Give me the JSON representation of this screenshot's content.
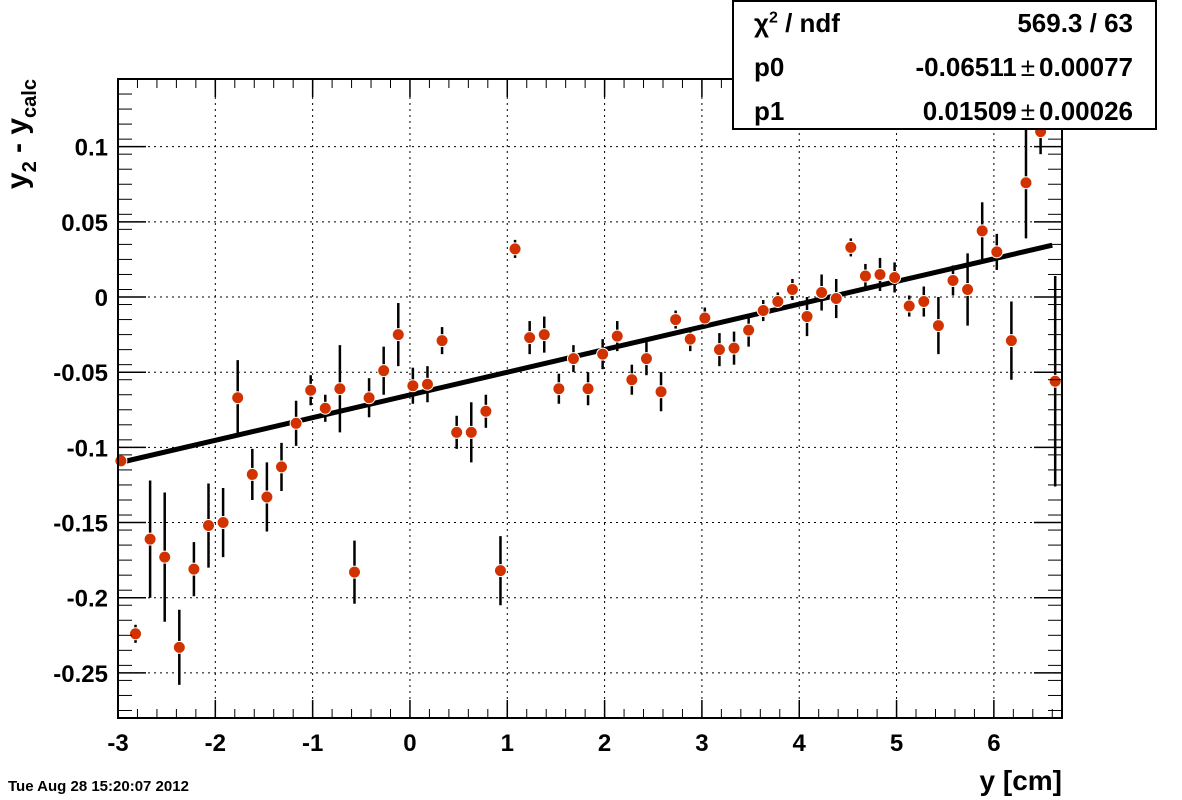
{
  "chart_data": {
    "type": "scatter",
    "xlabel": "y [cm]",
    "ylabel": {
      "base": "y",
      "sub1": "2",
      "mid": " - y",
      "sub2": "calc"
    },
    "xlim": [
      -3.0,
      6.7
    ],
    "ylim": [
      -0.28,
      0.145
    ],
    "grid": true,
    "x_ticks": [
      -3,
      -2,
      -1,
      0,
      1,
      2,
      3,
      4,
      5,
      6
    ],
    "x_tick_labels": [
      "-3",
      "-2",
      "-1",
      "0",
      "1",
      "2",
      "3",
      "4",
      "5",
      "6"
    ],
    "y_ticks": [
      -0.25,
      -0.2,
      -0.15,
      -0.1,
      -0.05,
      0,
      0.05,
      0.1
    ],
    "y_tick_labels": [
      "-0.25",
      "-0.2",
      "-0.15",
      "-0.1",
      "-0.05",
      "0",
      "0.05",
      "0.1"
    ],
    "marker_color": "#d23200",
    "fit_color": "#000000",
    "points": [
      {
        "x": -2.97,
        "y": -0.109,
        "err": 0.002
      },
      {
        "x": -2.82,
        "y": -0.224,
        "err": 0.006
      },
      {
        "x": -2.67,
        "y": -0.161,
        "err": 0.039
      },
      {
        "x": -2.52,
        "y": -0.173,
        "err": 0.043
      },
      {
        "x": -2.37,
        "y": -0.233,
        "err": 0.025
      },
      {
        "x": -2.22,
        "y": -0.181,
        "err": 0.018
      },
      {
        "x": -2.07,
        "y": -0.152,
        "err": 0.028
      },
      {
        "x": -1.92,
        "y": -0.15,
        "err": 0.023
      },
      {
        "x": -1.77,
        "y": -0.067,
        "err": 0.025
      },
      {
        "x": -1.62,
        "y": -0.118,
        "err": 0.017
      },
      {
        "x": -1.47,
        "y": -0.133,
        "err": 0.023
      },
      {
        "x": -1.32,
        "y": -0.113,
        "err": 0.016
      },
      {
        "x": -1.17,
        "y": -0.084,
        "err": 0.015
      },
      {
        "x": -1.02,
        "y": -0.062,
        "err": 0.01
      },
      {
        "x": -0.87,
        "y": -0.074,
        "err": 0.009
      },
      {
        "x": -0.72,
        "y": -0.061,
        "err": 0.029
      },
      {
        "x": -0.57,
        "y": -0.183,
        "err": 0.021
      },
      {
        "x": -0.42,
        "y": -0.067,
        "err": 0.013
      },
      {
        "x": -0.27,
        "y": -0.049,
        "err": 0.016
      },
      {
        "x": -0.12,
        "y": -0.025,
        "err": 0.021
      },
      {
        "x": 0.03,
        "y": -0.059,
        "err": 0.012
      },
      {
        "x": 0.18,
        "y": -0.058,
        "err": 0.012
      },
      {
        "x": 0.33,
        "y": -0.029,
        "err": 0.009
      },
      {
        "x": 0.48,
        "y": -0.09,
        "err": 0.011
      },
      {
        "x": 0.63,
        "y": -0.09,
        "err": 0.02
      },
      {
        "x": 0.78,
        "y": -0.076,
        "err": 0.011
      },
      {
        "x": 0.93,
        "y": -0.182,
        "err": 0.023
      },
      {
        "x": 1.08,
        "y": 0.032,
        "err": 0.006
      },
      {
        "x": 1.23,
        "y": -0.027,
        "err": 0.011
      },
      {
        "x": 1.38,
        "y": -0.025,
        "err": 0.012
      },
      {
        "x": 1.53,
        "y": -0.061,
        "err": 0.01
      },
      {
        "x": 1.68,
        "y": -0.041,
        "err": 0.009
      },
      {
        "x": 1.83,
        "y": -0.061,
        "err": 0.011
      },
      {
        "x": 1.98,
        "y": -0.038,
        "err": 0.01
      },
      {
        "x": 2.13,
        "y": -0.026,
        "err": 0.01
      },
      {
        "x": 2.28,
        "y": -0.055,
        "err": 0.01
      },
      {
        "x": 2.43,
        "y": -0.041,
        "err": 0.011
      },
      {
        "x": 2.58,
        "y": -0.063,
        "err": 0.013
      },
      {
        "x": 2.73,
        "y": -0.015,
        "err": 0.006
      },
      {
        "x": 2.88,
        "y": -0.028,
        "err": 0.008
      },
      {
        "x": 3.03,
        "y": -0.014,
        "err": 0.007
      },
      {
        "x": 3.18,
        "y": -0.035,
        "err": 0.011
      },
      {
        "x": 3.33,
        "y": -0.034,
        "err": 0.011
      },
      {
        "x": 3.48,
        "y": -0.022,
        "err": 0.011
      },
      {
        "x": 3.63,
        "y": -0.009,
        "err": 0.007
      },
      {
        "x": 3.78,
        "y": -0.003,
        "err": 0.006
      },
      {
        "x": 3.93,
        "y": 0.005,
        "err": 0.007
      },
      {
        "x": 4.08,
        "y": -0.013,
        "err": 0.013
      },
      {
        "x": 4.23,
        "y": 0.003,
        "err": 0.012
      },
      {
        "x": 4.38,
        "y": -0.001,
        "err": 0.013
      },
      {
        "x": 4.53,
        "y": 0.033,
        "err": 0.006
      },
      {
        "x": 4.68,
        "y": 0.014,
        "err": 0.008
      },
      {
        "x": 4.83,
        "y": 0.015,
        "err": 0.011
      },
      {
        "x": 4.98,
        "y": 0.013,
        "err": 0.01
      },
      {
        "x": 5.13,
        "y": -0.006,
        "err": 0.007
      },
      {
        "x": 5.28,
        "y": -0.003,
        "err": 0.01
      },
      {
        "x": 5.43,
        "y": -0.019,
        "err": 0.019
      },
      {
        "x": 5.58,
        "y": 0.011,
        "err": 0.01
      },
      {
        "x": 5.73,
        "y": 0.005,
        "err": 0.024
      },
      {
        "x": 5.88,
        "y": 0.044,
        "err": 0.019
      },
      {
        "x": 6.03,
        "y": 0.03,
        "err": 0.012
      },
      {
        "x": 6.18,
        "y": -0.029,
        "err": 0.026
      },
      {
        "x": 6.33,
        "y": 0.076,
        "err": 0.037
      },
      {
        "x": 6.48,
        "y": 0.11,
        "err": 0.015
      },
      {
        "x": 6.63,
        "y": -0.056,
        "err": 0.07
      }
    ],
    "fit": {
      "p0": -0.06511,
      "p1": 0.01509,
      "x_range": [
        -3.0,
        6.6
      ]
    }
  },
  "stats": {
    "rows": [
      {
        "name_base": "χ",
        "name_sup": "2",
        "name_rest": " / ndf",
        "value": "569.3 / 63",
        "error": ""
      },
      {
        "name_base": "p0",
        "name_sup": "",
        "name_rest": "",
        "value": "-0.06511",
        "error": "0.00077"
      },
      {
        "name_base": "p1",
        "name_sup": "",
        "name_rest": "",
        "value": "0.01509",
        "error": "0.00026"
      }
    ],
    "pm": "±"
  },
  "timestamp": "Tue Aug 28 15:20:07 2012"
}
